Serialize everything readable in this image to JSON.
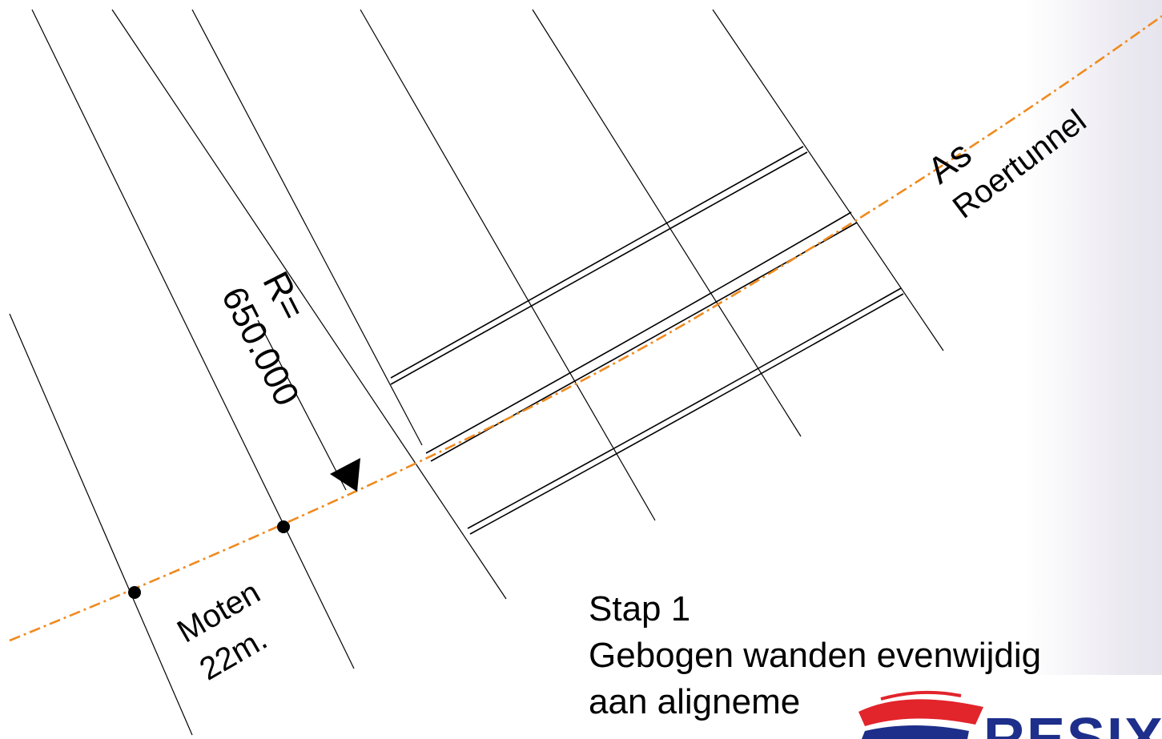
{
  "labels": {
    "axis": "As",
    "axis_name": "Roertunnel",
    "radius_prefix": "R=",
    "radius_value": "650.000",
    "joints": "Moten",
    "joint_spacing": "22m."
  },
  "caption": {
    "line1": "Stap 1",
    "line2": "Gebogen wanden evenwijdig",
    "line3": "aan aligneme"
  },
  "logo": {
    "text": "RESIX"
  },
  "colors": {
    "alignment": "#f08a1e",
    "lines": "#000000",
    "logo_red": "#e2242b",
    "logo_blue": "#1d2f8a"
  }
}
